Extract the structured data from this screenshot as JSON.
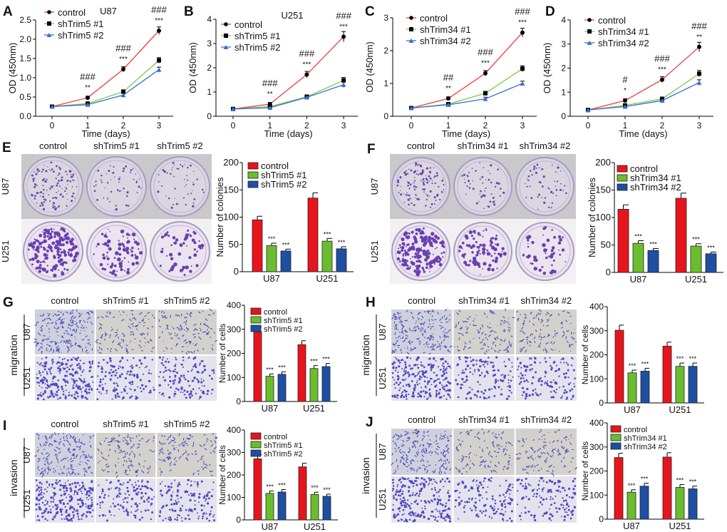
{
  "colors": {
    "control": "#e8141c",
    "sh1": "#6cbd2e",
    "sh2": "#1d4fa3",
    "line_control": "#f2393c",
    "line_sh1": "#7ec84a",
    "line_sh2": "#3b6fd0"
  },
  "image_panels": [
    {
      "letter": "E",
      "type": "colony",
      "columns": [
        "control",
        "shTrim5 #1",
        "shTrim5 #2"
      ],
      "rows": [
        "U87",
        "U251"
      ],
      "side_label": ""
    },
    {
      "letter": "F",
      "type": "colony",
      "columns": [
        "control",
        "shTrim34 #1",
        "shTrim34 #2"
      ],
      "rows": [
        "U87",
        "U251"
      ],
      "side_label": ""
    },
    {
      "letter": "G",
      "type": "transwell",
      "columns": [
        "control",
        "shTrim5 #1",
        "shTrim5 #2"
      ],
      "rows": [
        "U87",
        "U251"
      ],
      "side_label": "migration"
    },
    {
      "letter": "H",
      "type": "transwell",
      "columns": [
        "control",
        "shTrim34 #1",
        "shTrim34 #2"
      ],
      "rows": [
        "U87",
        "U251"
      ],
      "side_label": "migration"
    },
    {
      "letter": "I",
      "type": "transwell",
      "columns": [
        "control",
        "shTrim5 #1",
        "shTrim5 #2"
      ],
      "rows": [
        "U87",
        "U251"
      ],
      "side_label": "invasion"
    },
    {
      "letter": "J",
      "type": "transwell",
      "columns": [
        "control",
        "shTrim34 #1",
        "shTrim34 #2"
      ],
      "rows": [
        "U87",
        "U251"
      ],
      "side_label": "invasion"
    }
  ],
  "chart_data": [
    {
      "letter": "A",
      "type": "line",
      "title": "U87",
      "xlabel": "Time (days)",
      "ylabel": "OD (450nm)",
      "x": [
        0,
        1,
        2,
        3
      ],
      "ylim": [
        0,
        2.5
      ],
      "ytick_step": 0.5,
      "ytick_decimals": 1,
      "series": [
        {
          "name": "control",
          "values": [
            0.25,
            0.48,
            1.22,
            2.22
          ]
        },
        {
          "name": "shTrim5 #1",
          "values": [
            0.25,
            0.33,
            0.64,
            1.45
          ]
        },
        {
          "name": "shTrim5 #2",
          "values": [
            0.25,
            0.3,
            0.55,
            1.21
          ]
        }
      ],
      "annotations": [
        {
          "x": 1,
          "hash": "###",
          "stars": "**"
        },
        {
          "x": 2,
          "hash": "###",
          "stars": "***"
        },
        {
          "x": 3,
          "hash": "###",
          "stars": "***"
        }
      ],
      "legend": "top-left"
    },
    {
      "letter": "B",
      "type": "line",
      "title": "U251",
      "xlabel": "Time (days)",
      "ylabel": "OD (450nm)",
      "x": [
        0,
        1,
        2,
        3
      ],
      "ylim": [
        0,
        4
      ],
      "ytick_step": 1,
      "ytick_decimals": 0,
      "series": [
        {
          "name": "control",
          "values": [
            0.3,
            0.5,
            1.72,
            3.28
          ]
        },
        {
          "name": "shTrim5 #1",
          "values": [
            0.3,
            0.4,
            0.8,
            1.48
          ]
        },
        {
          "name": "shTrim5 #2",
          "values": [
            0.3,
            0.35,
            0.78,
            1.3
          ]
        }
      ],
      "annotations": [
        {
          "x": 1,
          "hash": "###",
          "stars": "**"
        },
        {
          "x": 2,
          "hash": "###",
          "stars": "***"
        },
        {
          "x": 3,
          "hash": "###",
          "stars": "***"
        }
      ],
      "legend": "top-left"
    },
    {
      "letter": "C",
      "type": "line",
      "title": "",
      "xlabel": "Time (days)",
      "ylabel": "OD (450nm)",
      "x": [
        0,
        1,
        2,
        3
      ],
      "ylim": [
        0,
        3
      ],
      "ytick_step": 1,
      "ytick_decimals": 0,
      "series": [
        {
          "name": "control",
          "values": [
            0.25,
            0.54,
            1.31,
            2.55
          ]
        },
        {
          "name": "shTrim34 #1",
          "values": [
            0.25,
            0.37,
            0.7,
            1.45
          ]
        },
        {
          "name": "shTrim34 #2",
          "values": [
            0.25,
            0.35,
            0.53,
            1.0
          ]
        }
      ],
      "annotations": [
        {
          "x": 1,
          "hash": "##",
          "stars": "**"
        },
        {
          "x": 2,
          "hash": "###",
          "stars": "***"
        },
        {
          "x": 3,
          "hash": "###",
          "stars": "***"
        }
      ],
      "legend": "top-left"
    },
    {
      "letter": "D",
      "type": "line",
      "title": "",
      "xlabel": "Time (days)",
      "ylabel": "OD (450nm)",
      "x": [
        0,
        1,
        2,
        3
      ],
      "ylim": [
        0,
        4
      ],
      "ytick_step": 1,
      "ytick_decimals": 0,
      "series": [
        {
          "name": "control",
          "values": [
            0.26,
            0.65,
            1.52,
            2.88
          ]
        },
        {
          "name": "shTrim34 #1",
          "values": [
            0.26,
            0.45,
            0.72,
            1.77
          ]
        },
        {
          "name": "shTrim34 #2",
          "values": [
            0.26,
            0.4,
            0.65,
            1.4
          ]
        }
      ],
      "annotations": [
        {
          "x": 1,
          "hash": "#",
          "stars": "*"
        },
        {
          "x": 2,
          "hash": "###",
          "stars": "***"
        },
        {
          "x": 3,
          "hash": "###",
          "stars": "**"
        }
      ],
      "legend": "top-left"
    },
    {
      "letter": "E",
      "type": "bar",
      "ylabel": "Number of colonies",
      "categories": [
        "U87",
        "U251"
      ],
      "ylim": [
        0,
        200
      ],
      "ytick_step": 50,
      "series": [
        {
          "name": "control",
          "values": [
            95,
            135
          ]
        },
        {
          "name": "shTrim5 #1",
          "values": [
            48,
            56
          ]
        },
        {
          "name": "shTrim5 #2",
          "values": [
            38,
            42
          ]
        }
      ],
      "sig": [
        "",
        "***",
        "***"
      ],
      "legend": "top-left"
    },
    {
      "letter": "F",
      "type": "bar",
      "ylabel": "Number of colonies",
      "categories": [
        "U87",
        "U251"
      ],
      "ylim": [
        0,
        200
      ],
      "ytick_step": 50,
      "series": [
        {
          "name": "control",
          "values": [
            115,
            135
          ]
        },
        {
          "name": "shTrim34 #1",
          "values": [
            53,
            48
          ]
        },
        {
          "name": "shTrim34 #2",
          "values": [
            40,
            34
          ]
        }
      ],
      "sig": [
        "",
        "***",
        "***"
      ],
      "legend": "top-left"
    },
    {
      "letter": "G",
      "type": "bar",
      "ylabel": "Number of cells",
      "categories": [
        "U87",
        "U251"
      ],
      "ylim": [
        0,
        400
      ],
      "ytick_step": 100,
      "series": [
        {
          "name": "control",
          "values": [
            290,
            236
          ]
        },
        {
          "name": "shTrim5 #1",
          "values": [
            105,
            137
          ]
        },
        {
          "name": "shTrim5 #2",
          "values": [
            113,
            145
          ]
        }
      ],
      "sig": [
        "",
        "***",
        "***"
      ],
      "legend": "top-left"
    },
    {
      "letter": "H",
      "type": "bar",
      "ylabel": "Number of cells",
      "categories": [
        "U87",
        "U251"
      ],
      "ylim": [
        0,
        400
      ],
      "ytick_step": 100,
      "series": [
        {
          "name": "",
          "values": [
            302,
            236
          ]
        },
        {
          "name": "",
          "values": [
            125,
            152
          ]
        },
        {
          "name": "",
          "values": [
            132,
            152
          ]
        }
      ],
      "sig": [
        "",
        "***",
        "***"
      ],
      "legend": "none"
    },
    {
      "letter": "I",
      "type": "bar",
      "ylabel": "Number of cells",
      "categories": [
        "U87",
        "U251"
      ],
      "ylim": [
        0,
        400
      ],
      "ytick_step": 100,
      "series": [
        {
          "name": "control",
          "values": [
            272,
            236
          ]
        },
        {
          "name": "shTrim5 #1",
          "values": [
            118,
            113
          ]
        },
        {
          "name": "shTrim5 #2",
          "values": [
            124,
            105
          ]
        }
      ],
      "sig": [
        "",
        "***",
        "***"
      ],
      "legend": "top-left"
    },
    {
      "letter": "J",
      "type": "bar",
      "ylabel": "Number of cells",
      "categories": [
        "U87",
        "U251"
      ],
      "ylim": [
        0,
        400
      ],
      "ytick_step": 100,
      "series": [
        {
          "name": "control",
          "values": [
            256,
            258
          ]
        },
        {
          "name": "shTrim34 #1",
          "values": [
            112,
            132
          ]
        },
        {
          "name": "shTrim34 #2",
          "values": [
            137,
            126
          ]
        }
      ],
      "sig": [
        "",
        "***",
        "***"
      ],
      "legend": "top-left"
    }
  ]
}
